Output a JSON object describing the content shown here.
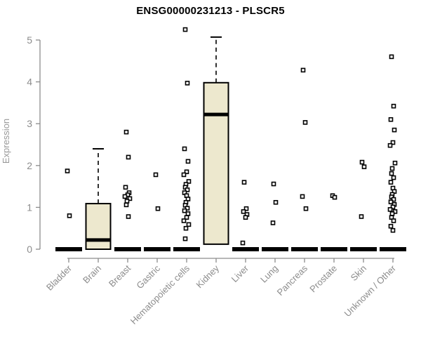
{
  "page": {
    "title": "ENSG00000231213 - PLSCR5"
  },
  "chart_data": {
    "type": "boxplot",
    "title": "ENSG00000231213 - PLSCR5",
    "ylabel": "Expression",
    "xlabel": "",
    "ylim": [
      0,
      5
    ],
    "yticks": [
      0,
      1,
      2,
      3,
      4,
      5
    ],
    "grid": false,
    "legend": "none",
    "marker": "open-square",
    "colors": {
      "box_fill": "#EDE8CE",
      "box_stroke": "#000000",
      "median": "#000000",
      "zero_bar": "#000000",
      "axis": "#8C8C8C",
      "tick_label": "#8C8C8C",
      "title": "#000000",
      "ylabel": "#999999",
      "point_stroke": "#000000",
      "point_fill": "#ffffff"
    },
    "categories": [
      {
        "name": "Bladder",
        "zero_bar": true,
        "points": [
          1.87,
          0.8
        ]
      },
      {
        "name": "Brain",
        "box": {
          "q1": 0,
          "median": 0.22,
          "q3": 1.09,
          "whisker_low": 0,
          "whisker_high": 2.4
        },
        "points": []
      },
      {
        "name": "Breast",
        "zero_bar": true,
        "points": [
          2.8,
          2.2,
          1.48,
          1.35,
          1.3,
          1.26,
          1.21,
          1.15,
          1.06,
          0.78
        ]
      },
      {
        "name": "Gastric",
        "zero_bar": true,
        "points": [
          1.78,
          0.97
        ]
      },
      {
        "name": "Hematopoietic cells",
        "zero_bar": true,
        "points": [
          5.25,
          3.97,
          2.4,
          2.1,
          1.85,
          1.78,
          1.62,
          1.55,
          1.48,
          1.42,
          1.35,
          1.28,
          1.2,
          1.12,
          1.05,
          0.98,
          0.92,
          0.85,
          0.76,
          0.68,
          0.59,
          0.5,
          0.25
        ]
      },
      {
        "name": "Kidney",
        "box": {
          "q1": 0.12,
          "median": 3.22,
          "q3": 3.98,
          "whisker_low": 0.12,
          "whisker_high": 5.07
        },
        "points": []
      },
      {
        "name": "Liver",
        "zero_bar": true,
        "points": [
          1.6,
          0.97,
          0.9,
          0.83,
          0.76,
          0.15
        ]
      },
      {
        "name": "Lung",
        "zero_bar": true,
        "points": [
          1.56,
          1.12,
          0.63
        ]
      },
      {
        "name": "Pancreas",
        "zero_bar": true,
        "points": [
          4.28,
          3.03,
          1.26,
          0.97
        ]
      },
      {
        "name": "Prostate",
        "zero_bar": true,
        "points": [
          1.28,
          1.24
        ]
      },
      {
        "name": "Skin",
        "zero_bar": true,
        "points": [
          2.08,
          1.97,
          0.78
        ]
      },
      {
        "name": "Unknown / Other",
        "zero_bar": true,
        "points": [
          4.6,
          3.42,
          3.1,
          2.85,
          2.55,
          2.48,
          2.06,
          1.93,
          1.81,
          1.71,
          1.6,
          1.46,
          1.38,
          1.31,
          1.25,
          1.19,
          1.13,
          1.07,
          1.01,
          0.95,
          0.9,
          0.85,
          0.76,
          0.68,
          0.55,
          0.45
        ]
      }
    ]
  }
}
